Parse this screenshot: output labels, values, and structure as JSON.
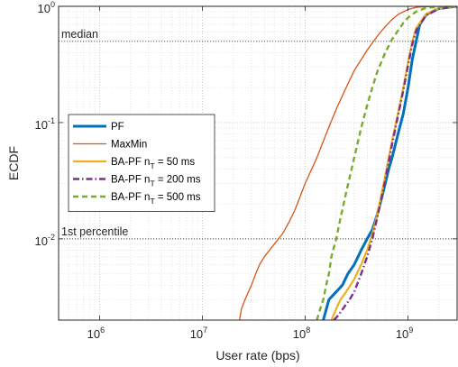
{
  "chart_data": {
    "type": "line",
    "xscale": "log",
    "yscale": "log",
    "xlim": [
      400000,
      3000000000
    ],
    "ylim": [
      0.002,
      1
    ],
    "xlabel": "User rate (bps)",
    "ylabel": "ECDF",
    "grid": true,
    "legend_position": "left",
    "x_ticks": [
      {
        "value": 1000000,
        "base": "10",
        "exp": "6"
      },
      {
        "value": 10000000,
        "base": "10",
        "exp": "7"
      },
      {
        "value": 100000000,
        "base": "10",
        "exp": "8"
      },
      {
        "value": 1000000000,
        "base": "10",
        "exp": "9"
      }
    ],
    "y_ticks": [
      {
        "value": 0.01,
        "base": "10",
        "exp": "-2"
      },
      {
        "value": 0.1,
        "base": "10",
        "exp": "-1"
      },
      {
        "value": 1,
        "base": "10",
        "exp": "0"
      }
    ],
    "reference_lines": [
      {
        "label": "median",
        "y": 0.5
      },
      {
        "label": "1st percentile",
        "y": 0.01
      }
    ],
    "series": [
      {
        "name": "PF",
        "color": "#0072BD",
        "dash": "solid",
        "x": [
          150000000,
          170000000,
          200000000,
          230000000,
          260000000,
          300000000,
          350000000,
          400000000,
          450000000,
          500000000,
          550000000,
          600000000,
          650000000,
          700000000,
          800000000,
          900000000,
          1000000000,
          1100000000,
          1200000000,
          1300000000,
          1500000000,
          2000000000,
          3000000000
        ],
        "y": [
          0.002,
          0.003,
          0.0035,
          0.004,
          0.005,
          0.006,
          0.008,
          0.01,
          0.012,
          0.016,
          0.022,
          0.03,
          0.04,
          0.05,
          0.08,
          0.12,
          0.2,
          0.35,
          0.5,
          0.7,
          0.85,
          0.96,
          1.0
        ]
      },
      {
        "name": "MaxMin",
        "color": "#D95319",
        "dash": "solid",
        "x": [
          23000000,
          24000000,
          26000000,
          28000000,
          30000000,
          33000000,
          36000000,
          40000000,
          45000000,
          50000000,
          60000000,
          70000000,
          80000000,
          100000000,
          130000000,
          160000000,
          200000000,
          250000000,
          300000000,
          400000000,
          500000000,
          600000000,
          700000000,
          800000000,
          1000000000,
          1200000000,
          1500000000,
          2000000000,
          3000000000
        ],
        "y": [
          0.002,
          0.0025,
          0.003,
          0.0035,
          0.004,
          0.005,
          0.006,
          0.007,
          0.008,
          0.009,
          0.011,
          0.014,
          0.018,
          0.03,
          0.05,
          0.08,
          0.13,
          0.2,
          0.28,
          0.42,
          0.55,
          0.67,
          0.77,
          0.85,
          0.94,
          0.98,
          0.995,
          1.0,
          1.0
        ]
      },
      {
        "name": "BA-PF nT = 50 ms",
        "color": "#EDB120",
        "dash": "solid",
        "x": [
          180000000,
          200000000,
          220000000,
          250000000,
          300000000,
          350000000,
          400000000,
          450000000,
          500000000,
          550000000,
          600000000,
          650000000,
          700000000,
          800000000,
          900000000,
          1000000000,
          1100000000,
          1200000000,
          1500000000,
          2000000000,
          3000000000
        ],
        "y": [
          0.002,
          0.0025,
          0.003,
          0.0035,
          0.0045,
          0.006,
          0.008,
          0.011,
          0.016,
          0.024,
          0.035,
          0.05,
          0.07,
          0.12,
          0.2,
          0.33,
          0.5,
          0.65,
          0.86,
          0.96,
          1.0
        ]
      },
      {
        "name": "BA-PF nT = 200 ms",
        "color": "#7E2F8E",
        "dash": "dashdot",
        "x": [
          190000000,
          210000000,
          240000000,
          270000000,
          300000000,
          350000000,
          400000000,
          450000000,
          500000000,
          550000000,
          600000000,
          650000000,
          700000000,
          800000000,
          900000000,
          1000000000,
          1100000000,
          1200000000,
          1500000000,
          2000000000,
          3000000000
        ],
        "y": [
          0.002,
          0.0022,
          0.0026,
          0.003,
          0.0035,
          0.005,
          0.007,
          0.01,
          0.015,
          0.022,
          0.032,
          0.046,
          0.065,
          0.115,
          0.19,
          0.31,
          0.47,
          0.62,
          0.84,
          0.95,
          1.0
        ]
      },
      {
        "name": "BA-PF nT = 500 ms",
        "color": "#77AC30",
        "dash": "dash",
        "x": [
          130000000,
          140000000,
          150000000,
          160000000,
          170000000,
          180000000,
          200000000,
          220000000,
          250000000,
          300000000,
          350000000,
          400000000,
          450000000,
          500000000,
          600000000,
          700000000,
          800000000,
          900000000,
          1000000000,
          1200000000,
          1500000000,
          2000000000,
          3000000000
        ],
        "y": [
          0.002,
          0.0025,
          0.003,
          0.004,
          0.005,
          0.007,
          0.01,
          0.015,
          0.025,
          0.05,
          0.09,
          0.14,
          0.2,
          0.27,
          0.4,
          0.52,
          0.62,
          0.72,
          0.8,
          0.9,
          0.97,
          0.99,
          1.0
        ]
      }
    ],
    "legend": [
      {
        "main": "PF",
        "sub": "",
        "tail": ""
      },
      {
        "main": "MaxMin",
        "sub": "",
        "tail": ""
      },
      {
        "main": "BA-PF n",
        "sub": "T",
        "tail": " = 50 ms"
      },
      {
        "main": "BA-PF n",
        "sub": "T",
        "tail": " = 200 ms"
      },
      {
        "main": "BA-PF n",
        "sub": "T",
        "tail": " = 500 ms"
      }
    ]
  }
}
